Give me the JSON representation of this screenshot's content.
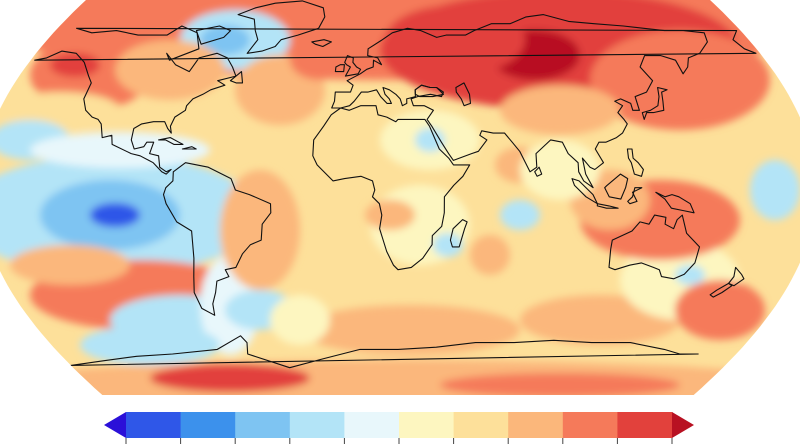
{
  "map": {
    "projection": "robinson",
    "central_longitude": 20,
    "background_color": "#ffffff",
    "coastline_color": "#111111"
  },
  "colorbar": {
    "extend": "both",
    "segment_colors": [
      "#2b10d8",
      "#2f57e8",
      "#3c91ec",
      "#7ec4f2",
      "#b3e4f7",
      "#e8f7fb",
      "#fdf6c0",
      "#fde09a",
      "#fbb77b",
      "#f57a5a",
      "#e2413c",
      "#b81122"
    ],
    "tick_count": 13,
    "tick_labels_visible": false
  },
  "anomaly_palette": {
    "cold_strong": "#2f57e8",
    "cold_medium": "#7ec4f2",
    "cold_light": "#b3e4f7",
    "near_zero_cool": "#e8f7fb",
    "near_zero_warm": "#fdf6c0",
    "warm_light": "#fde09a",
    "warm_medium": "#fbb77b",
    "warm_strong": "#f57a5a",
    "hot": "#e2413c",
    "very_hot": "#b81122"
  }
}
